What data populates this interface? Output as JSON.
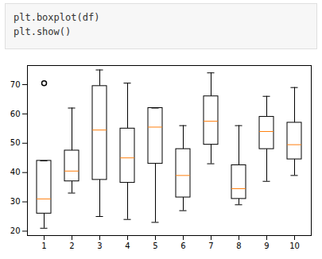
{
  "chart_data": {
    "type": "boxplot",
    "annotations": [
      "plt.boxplot(df)",
      "plt.show()"
    ],
    "categories": [
      "1",
      "2",
      "3",
      "4",
      "5",
      "6",
      "7",
      "8",
      "9",
      "10"
    ],
    "min": [
      21,
      33,
      25,
      24,
      23,
      27,
      43,
      29,
      37,
      39
    ],
    "q1": [
      26,
      37,
      37.5,
      36.5,
      43,
      31.5,
      49.5,
      31,
      48,
      44.5
    ],
    "median": [
      31,
      40.5,
      54.5,
      45,
      55.5,
      39,
      57.5,
      34.5,
      54,
      49.5
    ],
    "q3": [
      44,
      47.5,
      69.5,
      55,
      62,
      48,
      66,
      42.5,
      59,
      57
    ],
    "max": [
      44,
      62,
      75,
      70.5,
      62,
      56,
      74,
      56,
      66,
      69
    ],
    "outliers": [
      [
        70.5
      ],
      [],
      [],
      [],
      [],
      [],
      [],
      [],
      [],
      []
    ],
    "color": "#ff7f0e",
    "ylim": [
      18.5,
      76.5
    ],
    "yticks": [
      20,
      30,
      40,
      50,
      60,
      70
    ],
    "grid": false
  }
}
